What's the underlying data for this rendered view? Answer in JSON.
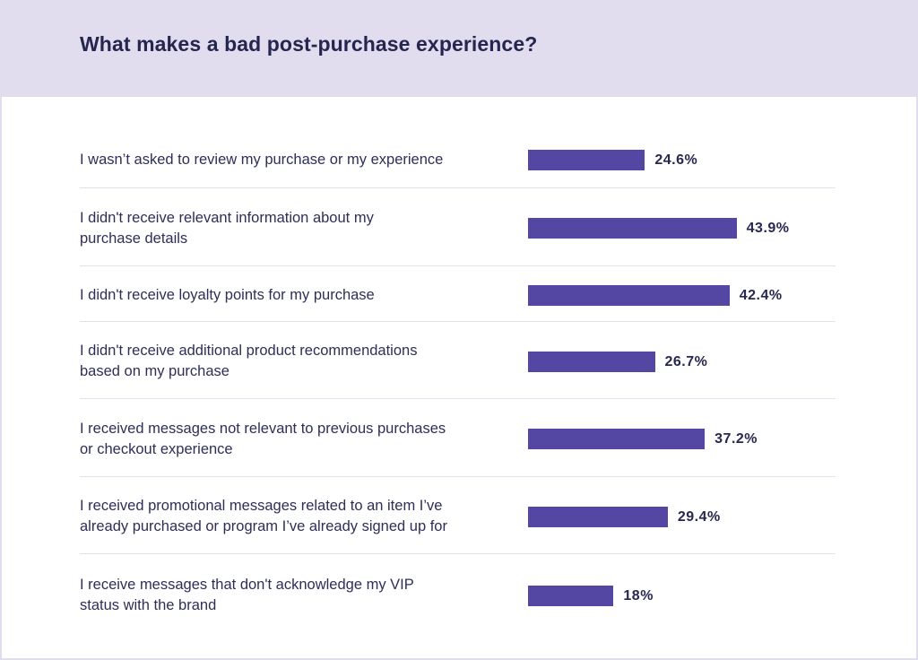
{
  "chart_data": {
    "type": "bar",
    "orientation": "horizontal",
    "title": "What makes a bad post-purchase experience?",
    "xlabel": "",
    "ylabel": "",
    "xlim": [
      0,
      100
    ],
    "grid": false,
    "legend": "none",
    "bar_color": "#5446a3",
    "categories": [
      "I wasn’t asked to review my purchase or my experience",
      "I didn't receive relevant information about my purchase details",
      "I didn't receive loyalty points for my purchase",
      "I didn't receive additional product recommendations based on my purchase",
      "I received messages not relevant to previous purchases or checkout experience",
      "I received promotional messages related to an item I’ve already purchased or program I’ve already signed up for",
      "I receive messages that don't acknowledge my VIP status with the brand"
    ],
    "label_lines": [
      [
        "I wasn’t asked to review my purchase or my experience"
      ],
      [
        "I didn't receive relevant information about my",
        "purchase details"
      ],
      [
        "I didn't receive loyalty points for my purchase"
      ],
      [
        "I didn't receive additional product recommendations",
        "based on my purchase"
      ],
      [
        "I received messages not relevant to previous purchases",
        "or checkout experience"
      ],
      [
        "I received promotional messages related to an item I’ve",
        "already purchased or program I’ve already signed up for"
      ],
      [
        "I receive messages that don't acknowledge my VIP",
        "status with the brand"
      ]
    ],
    "values": [
      24.6,
      43.9,
      42.4,
      26.7,
      37.2,
      29.4,
      18
    ],
    "value_labels": [
      "24.6%",
      "43.9%",
      "42.4%",
      "26.7%",
      "37.2%",
      "29.4%",
      "18%"
    ]
  }
}
